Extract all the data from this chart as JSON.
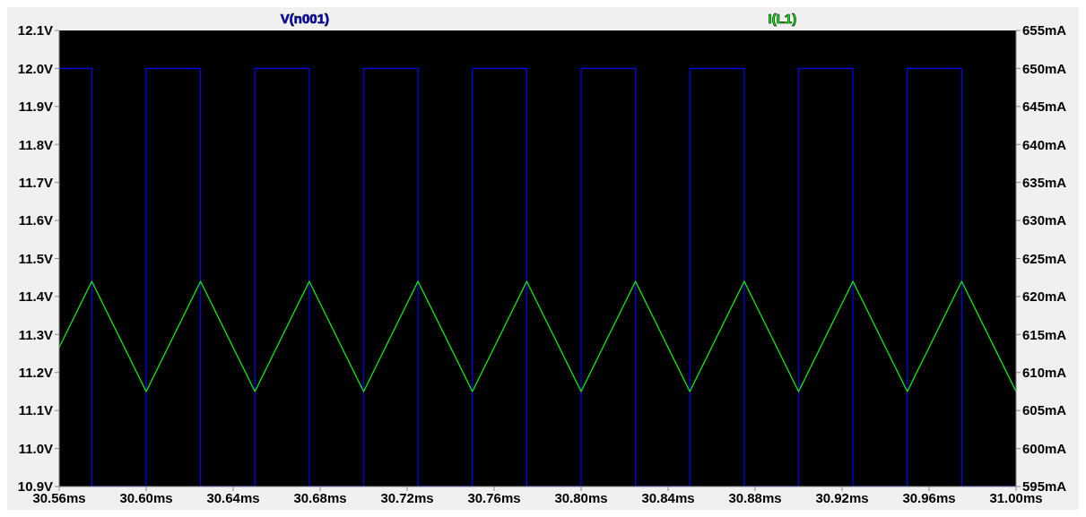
{
  "chart_data": {
    "type": "line",
    "xlim": [
      30.56,
      31.0
    ],
    "xticks": [
      {
        "value": 30.56,
        "label": "30.56ms"
      },
      {
        "value": 30.6,
        "label": "30.60ms"
      },
      {
        "value": 30.64,
        "label": "30.64ms"
      },
      {
        "value": 30.68,
        "label": "30.68ms"
      },
      {
        "value": 30.72,
        "label": "30.72ms"
      },
      {
        "value": 30.76,
        "label": "30.76ms"
      },
      {
        "value": 30.8,
        "label": "30.80ms"
      },
      {
        "value": 30.84,
        "label": "30.84ms"
      },
      {
        "value": 30.88,
        "label": "30.88ms"
      },
      {
        "value": 30.92,
        "label": "30.92ms"
      },
      {
        "value": 30.96,
        "label": "30.96ms"
      },
      {
        "value": 31.0,
        "label": "31.00ms"
      }
    ],
    "ylim": [
      10.9,
      12.1
    ],
    "yticks": [
      {
        "value": 10.9,
        "label": "10.9V"
      },
      {
        "value": 11.0,
        "label": "11.0V"
      },
      {
        "value": 11.1,
        "label": "11.1V"
      },
      {
        "value": 11.2,
        "label": "11.2V"
      },
      {
        "value": 11.3,
        "label": "11.3V"
      },
      {
        "value": 11.4,
        "label": "11.4V"
      },
      {
        "value": 11.5,
        "label": "11.5V"
      },
      {
        "value": 11.6,
        "label": "11.6V"
      },
      {
        "value": 11.7,
        "label": "11.7V"
      },
      {
        "value": 11.8,
        "label": "11.8V"
      },
      {
        "value": 11.9,
        "label": "11.9V"
      },
      {
        "value": 12.0,
        "label": "12.0V"
      },
      {
        "value": 12.1,
        "label": "12.1V"
      }
    ],
    "y2lim": [
      595,
      655
    ],
    "y2ticks": [
      {
        "value": 595,
        "label": "595mA"
      },
      {
        "value": 600,
        "label": "600mA"
      },
      {
        "value": 605,
        "label": "605mA"
      },
      {
        "value": 610,
        "label": "610mA"
      },
      {
        "value": 615,
        "label": "615mA"
      },
      {
        "value": 620,
        "label": "620mA"
      },
      {
        "value": 625,
        "label": "625mA"
      },
      {
        "value": 630,
        "label": "630mA"
      },
      {
        "value": 635,
        "label": "635mA"
      },
      {
        "value": 640,
        "label": "640mA"
      },
      {
        "value": 645,
        "label": "645mA"
      },
      {
        "value": 650,
        "label": "650mA"
      },
      {
        "value": 655,
        "label": "655mA"
      }
    ],
    "grid": false,
    "legend": "top",
    "marker": "none",
    "line_style": "solid",
    "series": [
      {
        "name": "V(n001)",
        "color": "#0000ff",
        "x": [
          30.56,
          30.575,
          30.575,
          30.6,
          30.6,
          30.625,
          30.625,
          30.65,
          30.65,
          30.675,
          30.675,
          30.7,
          30.7,
          30.725,
          30.725,
          30.75,
          30.75,
          30.775,
          30.775,
          30.8,
          30.8,
          30.825,
          30.825,
          30.85,
          30.85,
          30.875,
          30.875,
          30.9,
          30.9,
          30.925,
          30.925,
          30.95,
          30.95,
          30.975,
          30.975,
          31.0
        ],
        "values": [
          12.0,
          12.0,
          10.9,
          10.9,
          12.0,
          12.0,
          10.9,
          10.9,
          12.0,
          12.0,
          10.9,
          10.9,
          12.0,
          12.0,
          10.9,
          10.9,
          12.0,
          12.0,
          10.9,
          10.9,
          12.0,
          12.0,
          10.9,
          10.9,
          12.0,
          12.0,
          10.9,
          10.9,
          12.0,
          12.0,
          10.9,
          10.9,
          12.0,
          12.0,
          10.9,
          10.9
        ]
      },
      {
        "name": "I(L1)",
        "color": "#00ff00",
        "axis": "y2",
        "x": [
          30.56,
          30.575,
          30.6,
          30.625,
          30.65,
          30.675,
          30.7,
          30.725,
          30.75,
          30.775,
          30.8,
          30.825,
          30.85,
          30.875,
          30.9,
          30.925,
          30.95,
          30.975,
          31.0
        ],
        "values": [
          613.3,
          622,
          607.5,
          622,
          607.5,
          622,
          607.5,
          622,
          607.5,
          622,
          607.5,
          622,
          607.5,
          622,
          607.5,
          622,
          607.5,
          622,
          607.5
        ]
      }
    ]
  }
}
